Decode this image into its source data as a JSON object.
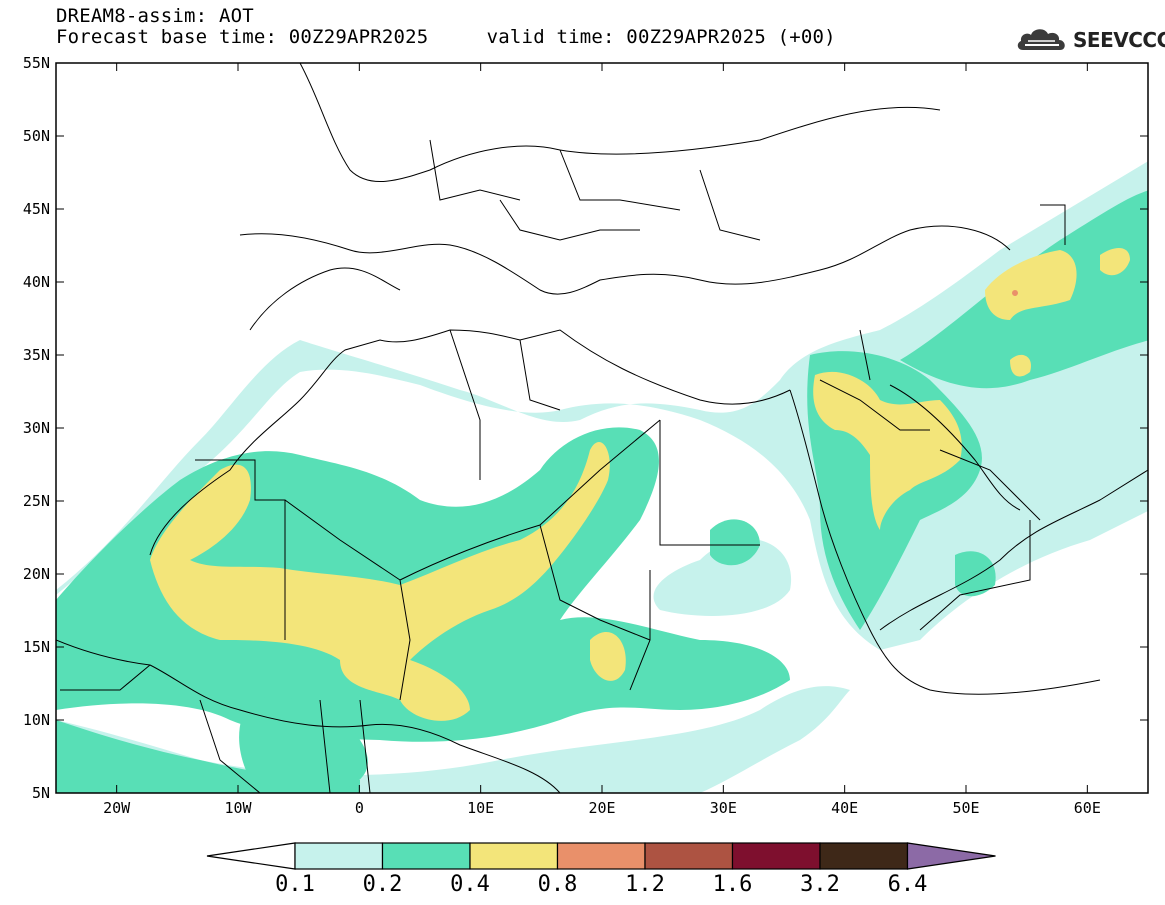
{
  "header": {
    "title_line1": "DREAM8-assim: AOT",
    "title_line2": "Forecast base time: 00Z29APR2025     valid time: 00Z29APR2025 (+00)"
  },
  "logo": {
    "text": "SEEVCCC",
    "icon": "cloud-icon"
  },
  "map": {
    "projection": "lat-lon",
    "lon_range": [
      -25,
      65
    ],
    "lat_range": [
      5,
      55
    ],
    "lon_ticks": [
      {
        "value": -20,
        "label": "20W"
      },
      {
        "value": -10,
        "label": "10W"
      },
      {
        "value": 0,
        "label": "0"
      },
      {
        "value": 10,
        "label": "10E"
      },
      {
        "value": 20,
        "label": "20E"
      },
      {
        "value": 30,
        "label": "30E"
      },
      {
        "value": 40,
        "label": "40E"
      },
      {
        "value": 50,
        "label": "50E"
      },
      {
        "value": 60,
        "label": "60E"
      }
    ],
    "lat_ticks": [
      {
        "value": 5,
        "label": "5N"
      },
      {
        "value": 10,
        "label": "10N"
      },
      {
        "value": 15,
        "label": "15N"
      },
      {
        "value": 20,
        "label": "20N"
      },
      {
        "value": 25,
        "label": "25N"
      },
      {
        "value": 30,
        "label": "30N"
      },
      {
        "value": 35,
        "label": "35N"
      },
      {
        "value": 40,
        "label": "40N"
      },
      {
        "value": 45,
        "label": "45N"
      },
      {
        "value": 50,
        "label": "50N"
      },
      {
        "value": 55,
        "label": "55N"
      }
    ]
  },
  "colorbar": {
    "levels": [
      "0.1",
      "0.2",
      "0.4",
      "0.8",
      "1.2",
      "1.6",
      "3.2",
      "6.4"
    ],
    "colors": {
      "below": "#ffffff",
      "bins": [
        "#c6f2ec",
        "#58dfb6",
        "#f3e57a",
        "#e9906a",
        "#ad5342",
        "#7e0f2e",
        "#3e2818"
      ],
      "above": "#8c6aa6"
    }
  }
}
